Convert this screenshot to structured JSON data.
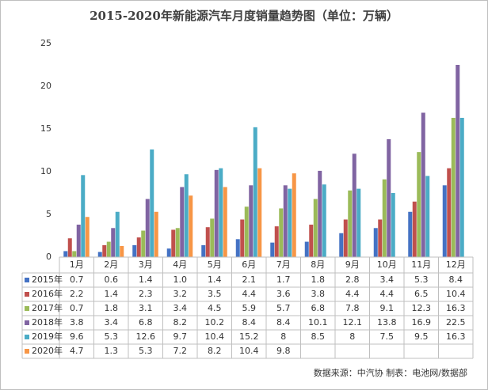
{
  "chart_data": {
    "type": "bar",
    "title": "2015-2020年新能源汽车月度销量趋势图（单位：万辆）",
    "categories": [
      "1月",
      "2月",
      "3月",
      "4月",
      "5月",
      "6月",
      "7月",
      "8月",
      "9月",
      "10月",
      "11月",
      "12月"
    ],
    "series": [
      {
        "name": "2015年",
        "color": "#4472c4",
        "values": [
          0.7,
          0.6,
          1.4,
          1.0,
          1.4,
          2.1,
          1.7,
          1.8,
          2.8,
          3.4,
          5.3,
          8.4
        ],
        "value_labels": [
          "0.7",
          "0.6",
          "1.4",
          "1.0",
          "1.4",
          "2.1",
          "1.7",
          "1.8",
          "2.8",
          "3.4",
          "5.3",
          "8.4"
        ]
      },
      {
        "name": "2016年",
        "color": "#c0504d",
        "values": [
          2.2,
          1.4,
          2.3,
          3.2,
          3.5,
          4.4,
          3.6,
          3.8,
          4.4,
          4.4,
          6.5,
          10.4
        ]
      },
      {
        "name": "2017年",
        "color": "#9bbb59",
        "values": [
          0.7,
          1.8,
          3.1,
          3.4,
          4.5,
          5.9,
          5.7,
          6.8,
          7.8,
          9.1,
          12.3,
          16.3
        ]
      },
      {
        "name": "2018年",
        "color": "#8064a2",
        "values": [
          3.8,
          3.4,
          6.8,
          8.2,
          10.2,
          8.4,
          8.4,
          10.1,
          12.1,
          13.8,
          16.9,
          22.5
        ]
      },
      {
        "name": "2019年",
        "color": "#4bacc6",
        "values": [
          9.6,
          5.3,
          12.6,
          9.7,
          10.4,
          15.2,
          8,
          8.5,
          8,
          7.5,
          9.5,
          16.3
        ]
      },
      {
        "name": "2020年",
        "color": "#f79646",
        "values": [
          4.7,
          1.3,
          5.3,
          7.2,
          8.2,
          10.4,
          9.8,
          null,
          null,
          null,
          null,
          null
        ]
      }
    ],
    "ylim": [
      0,
      25
    ],
    "yticks": [
      0,
      5,
      10,
      15,
      20,
      25
    ],
    "grid": false,
    "source": "数据来源：中汽协   制表：电池网/数据部"
  }
}
